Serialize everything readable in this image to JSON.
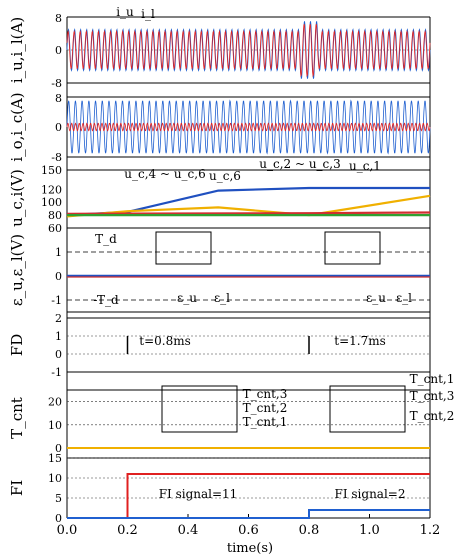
{
  "chart_data": [
    {
      "panel": "iu_i1",
      "type": "line",
      "ylabel": "i_u,i_l(A)",
      "ylim": [
        -8,
        8
      ],
      "yticks": [
        "8",
        "0",
        "-8"
      ],
      "annotations": [
        "i_u",
        "i_l"
      ],
      "series": [
        {
          "name": "i_u",
          "color": "#2060d0",
          "x": [
            0,
            1.2
          ],
          "amplitude": [
            5,
            5
          ]
        },
        {
          "name": "i_l",
          "color": "#e02020",
          "x": [
            0,
            1.2
          ],
          "amplitude": [
            4.5,
            4.5
          ]
        }
      ]
    },
    {
      "panel": "io_ic",
      "type": "line",
      "ylabel": "i_o,i_c(A)",
      "ylim": [
        -8,
        8
      ],
      "yticks": [
        "8",
        "0",
        "-8"
      ],
      "series": [
        {
          "name": "i_o",
          "color": "#2060d0",
          "x": [
            0,
            1.2
          ],
          "amplitude": [
            7,
            7
          ]
        },
        {
          "name": "i_c",
          "color": "#e02020",
          "x": [
            0,
            1.2
          ],
          "amplitude": [
            1,
            1
          ]
        }
      ]
    },
    {
      "panel": "uc",
      "type": "line",
      "ylabel": "u_c,i(V)",
      "ylim": [
        60,
        150
      ],
      "yticks": [
        "150",
        "120",
        "100",
        "80",
        "60"
      ],
      "annotations": [
        "u_c,4 ~ u_c,6",
        "u_c,6",
        "u_c,2 ~ u_c,3",
        "u_c,1"
      ],
      "series": [
        {
          "name": "u_c,4~u_c,6",
          "color": "#2050c0",
          "x": [
            0,
            0.2,
            0.5,
            0.8,
            1.2
          ],
          "y": [
            80,
            85,
            118,
            122,
            122
          ]
        },
        {
          "name": "u_c,6",
          "color": "#f0b000",
          "x": [
            0,
            0.2,
            0.5,
            0.8,
            1.2
          ],
          "y": [
            78,
            86,
            92,
            80,
            110
          ]
        },
        {
          "name": "u_c,2~u_c,3",
          "color": "#d03030",
          "x": [
            0,
            0.8,
            1.2
          ],
          "y": [
            82,
            83,
            84
          ]
        },
        {
          "name": "u_c,1",
          "color": "#30a030",
          "x": [
            0,
            1.2
          ],
          "y": [
            80,
            80
          ]
        }
      ]
    },
    {
      "panel": "eps",
      "type": "line",
      "ylabel": "ε_u,ε_l(V)",
      "ylim": [
        -1.5,
        2
      ],
      "yticks": [
        "1",
        "0",
        "-1"
      ],
      "annotations": [
        "T_d",
        "-T_d",
        "ε_u",
        "ε_l",
        "ε_u",
        "ε_l"
      ],
      "thresholds": [
        1,
        -1
      ]
    },
    {
      "panel": "fd",
      "type": "line",
      "ylabel": "FD",
      "ylim": [
        -1,
        2
      ],
      "yticks": [
        "2",
        "1",
        "0",
        "-1"
      ],
      "annotations": [
        "t=0.8ms",
        "t=1.7ms"
      ],
      "x": [
        0,
        0.2,
        0.2,
        0.8,
        0.8,
        1.2
      ],
      "y": [
        0,
        0,
        1,
        1,
        1,
        1
      ]
    },
    {
      "panel": "tcnt",
      "type": "line",
      "ylabel": "T_cnt",
      "ylim": [
        0,
        25
      ],
      "yticks": [
        "20",
        "10",
        "0"
      ],
      "annotations": [
        "T_cnt,3",
        "T_cnt,2",
        "T_cnt,1",
        "T_cnt,1",
        "T_cnt,3",
        "T_cnt,2"
      ]
    },
    {
      "panel": "fi",
      "type": "line",
      "ylabel": "FI",
      "xlabel": "time(s)",
      "ylim": [
        0,
        15
      ],
      "yticks": [
        "15",
        "10",
        "5",
        "0"
      ],
      "xticks": [
        "0.0",
        "0.2",
        "0.4",
        "0.6",
        "0.8",
        "1.0",
        "1.2"
      ],
      "annotations": [
        "FI signal=11",
        "FI signal=2"
      ],
      "series": [
        {
          "name": "FI1",
          "color": "#e02020",
          "x": [
            0,
            0.2,
            0.2,
            1.2
          ],
          "y": [
            0,
            0,
            11,
            11
          ]
        },
        {
          "name": "FI2",
          "color": "#2060d0",
          "x": [
            0,
            0.8,
            0.8,
            1.2
          ],
          "y": [
            0,
            0,
            2,
            2
          ]
        }
      ]
    }
  ]
}
